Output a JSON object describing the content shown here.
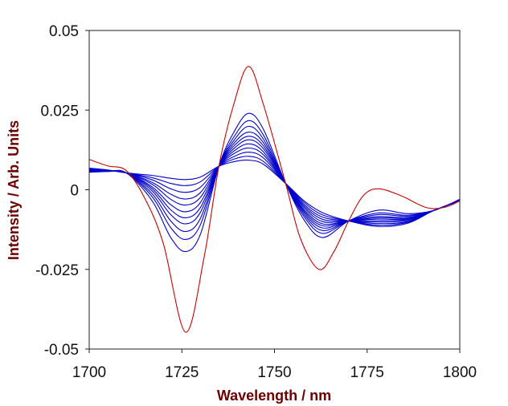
{
  "chart_data": {
    "type": "line",
    "title": "",
    "xlabel": "Wavelength / nm",
    "ylabel": "Intensity / Arb. Units",
    "xlim": [
      1700,
      1800
    ],
    "ylim": [
      -0.05,
      0.05
    ],
    "xticks": [
      1700,
      1725,
      1750,
      1775,
      1800
    ],
    "xtick_labels": [
      "1700",
      "1725",
      "1750",
      "1775",
      "1800"
    ],
    "yticks": [
      0.05,
      0.025,
      0,
      -0.025,
      -0.05
    ],
    "ytick_labels": [
      "0.05",
      "0.025",
      "0",
      "-0.025",
      "-0.05"
    ],
    "grid": false,
    "legend": "none",
    "colors": {
      "red_series": "#cc0000",
      "blue_series": "#0000cc",
      "axis_label": "#6e0000"
    },
    "red_series": {
      "x": [
        1700,
        1705,
        1710,
        1715,
        1720,
        1726,
        1731,
        1735,
        1739,
        1743,
        1747,
        1753,
        1757,
        1762,
        1766,
        1770,
        1774,
        1778,
        1784,
        1791,
        1796,
        1800
      ],
      "y": [
        0.0095,
        0.0075,
        0.006,
        -0.0027,
        -0.0169,
        -0.0447,
        -0.0212,
        0.0074,
        0.0268,
        0.0387,
        0.0268,
        0.002,
        -0.0153,
        -0.025,
        -0.0195,
        -0.0098,
        -0.0018,
        0.0003,
        -0.0018,
        -0.0056,
        -0.0055,
        -0.0035
      ]
    },
    "blue_x": [
      1700,
      1705,
      1710,
      1717,
      1722,
      1726,
      1730,
      1735,
      1739,
      1743,
      1747,
      1753,
      1758,
      1763,
      1770,
      1778,
      1786,
      1793,
      1800
    ],
    "blue_series": [
      [
        0.0068,
        0.0062,
        0.0053,
        0.0045,
        0.0036,
        0.0032,
        0.004,
        0.0074,
        0.0088,
        0.0093,
        0.008,
        0.002,
        -0.0035,
        -0.0072,
        -0.0098,
        -0.0115,
        -0.0105,
        -0.0065,
        -0.0035
      ],
      [
        0.0067,
        0.0062,
        0.0053,
        0.0038,
        0.002,
        0.0013,
        0.0025,
        0.0074,
        0.0096,
        0.0105,
        0.0089,
        0.002,
        -0.004,
        -0.0079,
        -0.0098,
        -0.0111,
        -0.0102,
        -0.0065,
        -0.0035
      ],
      [
        0.0066,
        0.0061,
        0.0053,
        0.0031,
        0.0003,
        -0.0008,
        0.0008,
        0.0074,
        0.0104,
        0.0118,
        0.01,
        0.002,
        -0.0046,
        -0.0086,
        -0.0098,
        -0.0106,
        -0.01,
        -0.0065,
        -0.0034
      ],
      [
        0.0064,
        0.0061,
        0.0053,
        0.0023,
        -0.0014,
        -0.0029,
        -0.0009,
        0.0074,
        0.0113,
        0.0131,
        0.011,
        0.002,
        -0.0051,
        -0.0093,
        -0.0098,
        -0.0101,
        -0.0097,
        -0.0065,
        -0.0034
      ],
      [
        0.0063,
        0.006,
        0.0053,
        0.0017,
        -0.003,
        -0.0048,
        -0.0024,
        0.0074,
        0.0121,
        0.0144,
        0.0119,
        0.002,
        -0.0056,
        -0.01,
        -0.0098,
        -0.0097,
        -0.0094,
        -0.0065,
        -0.0033
      ],
      [
        0.0062,
        0.006,
        0.0053,
        0.0009,
        -0.0047,
        -0.0069,
        -0.004,
        0.0074,
        0.0129,
        0.0157,
        0.0129,
        0.002,
        -0.0062,
        -0.0107,
        -0.0098,
        -0.0092,
        -0.0092,
        -0.0065,
        -0.0033
      ],
      [
        0.0061,
        0.0059,
        0.0053,
        0.0003,
        -0.0063,
        -0.0088,
        -0.0056,
        0.0074,
        0.0137,
        0.0168,
        0.0138,
        0.002,
        -0.0067,
        -0.0113,
        -0.0098,
        -0.0088,
        -0.0089,
        -0.0065,
        -0.0032
      ],
      [
        0.006,
        0.0059,
        0.0053,
        -0.0004,
        -0.0078,
        -0.0107,
        -0.0071,
        0.0074,
        0.0145,
        0.0181,
        0.0148,
        0.002,
        -0.0072,
        -0.012,
        -0.0098,
        -0.0084,
        -0.0087,
        -0.0065,
        -0.0032
      ],
      [
        0.0059,
        0.0058,
        0.0053,
        -0.0013,
        -0.0098,
        -0.0131,
        -0.009,
        0.0074,
        0.0154,
        0.0199,
        0.0159,
        0.002,
        -0.0078,
        -0.0128,
        -0.0098,
        -0.0078,
        -0.0083,
        -0.0065,
        -0.0031
      ],
      [
        0.0057,
        0.0058,
        0.0053,
        -0.0022,
        -0.0119,
        -0.0156,
        -0.011,
        0.0074,
        0.0165,
        0.0217,
        0.0172,
        0.002,
        -0.0085,
        -0.0137,
        -0.0098,
        -0.0073,
        -0.008,
        -0.0065,
        -0.0031
      ],
      [
        0.0055,
        0.0057,
        0.0053,
        -0.0035,
        -0.015,
        -0.0194,
        -0.014,
        0.0074,
        0.018,
        0.024,
        0.019,
        0.002,
        -0.0095,
        -0.015,
        -0.0098,
        -0.0064,
        -0.0075,
        -0.0065,
        -0.003
      ]
    ]
  }
}
